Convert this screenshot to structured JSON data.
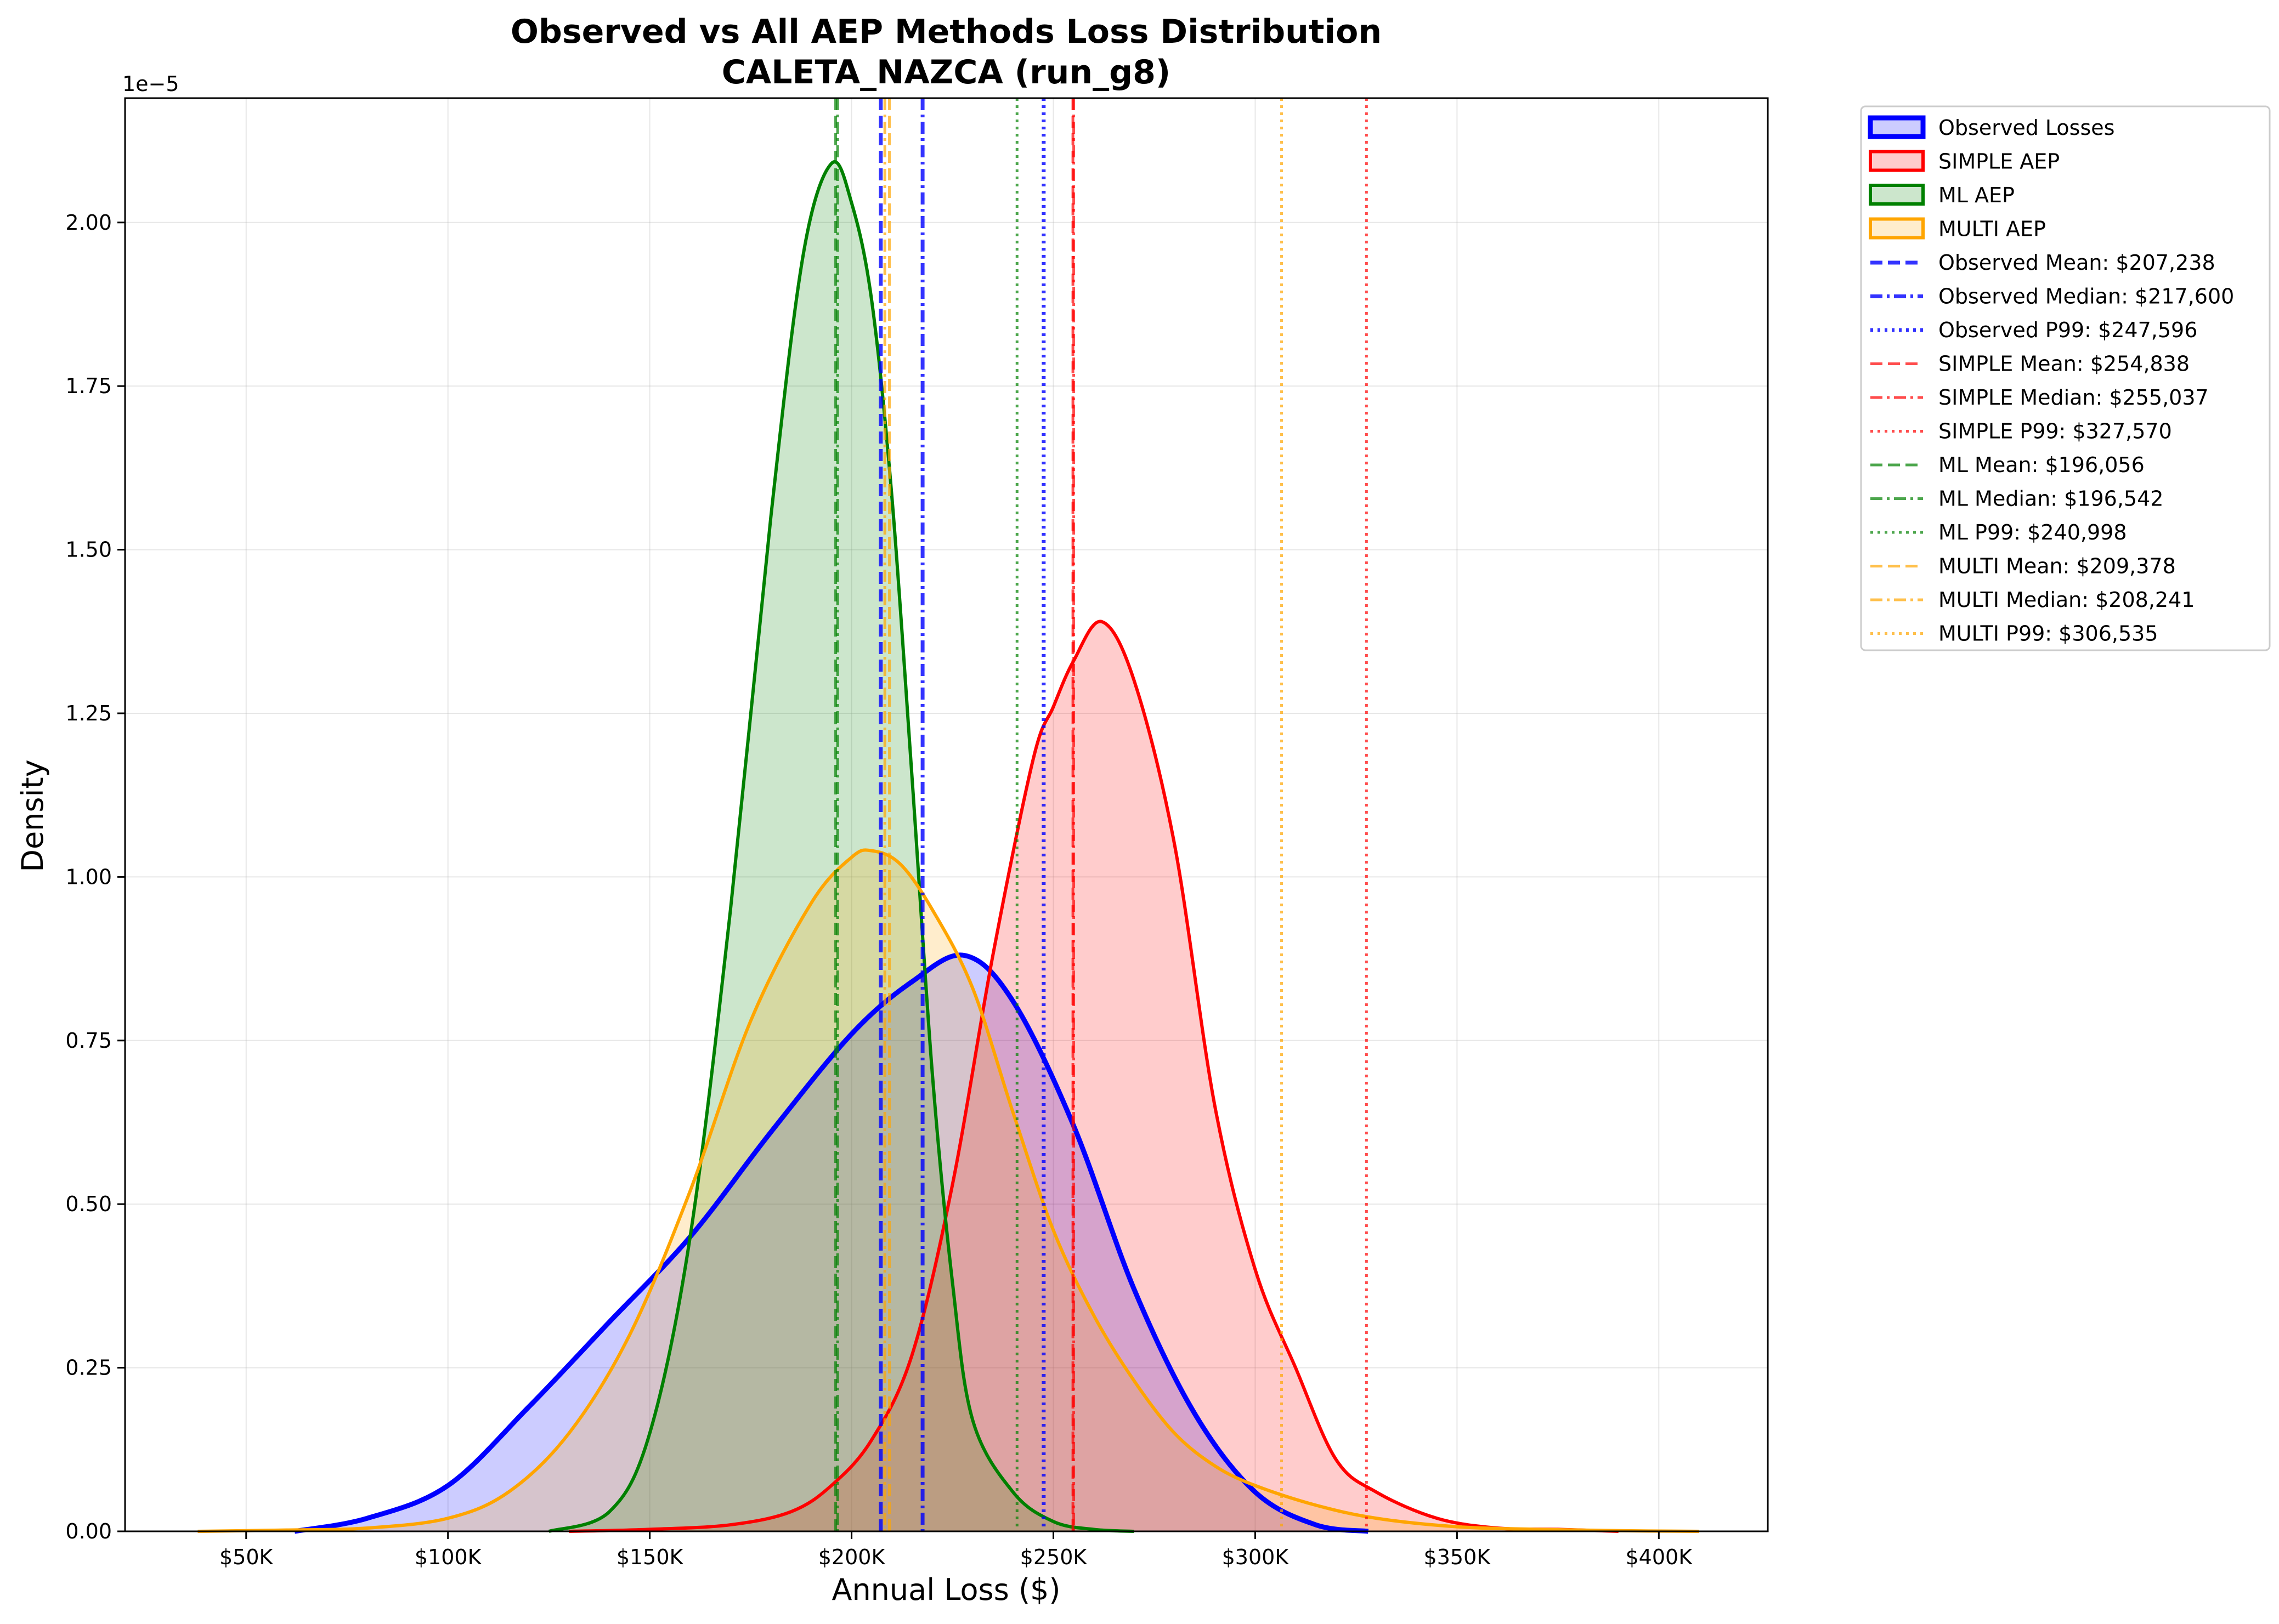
{
  "chart_data": {
    "type": "area",
    "title": "Observed vs All AEP Methods Loss Distribution",
    "subtitle": "CALETA_NAZCA (run_g8)",
    "xlabel": "Annual Loss ($)",
    "ylabel": "Density",
    "y_scale_label": "1e−5",
    "xlim": [
      20000,
      427000
    ],
    "ylim": [
      0,
      2.19
    ],
    "x_ticks": [
      50000,
      100000,
      150000,
      200000,
      250000,
      300000,
      350000,
      400000
    ],
    "x_tick_labels": [
      "$50K",
      "$100K",
      "$150K",
      "$200K",
      "$250K",
      "$300K",
      "$350K",
      "$400K"
    ],
    "y_ticks": [
      0,
      0.25,
      0.5,
      0.75,
      1.0,
      1.25,
      1.5,
      1.75,
      2.0
    ],
    "y_tick_labels": [
      "0.00",
      "0.25",
      "0.50",
      "0.75",
      "1.00",
      "1.25",
      "1.50",
      "1.75",
      "2.00"
    ],
    "grid": true,
    "legend_position": "outside-right-top",
    "series": [
      {
        "name": "Observed Losses",
        "color": "#0000ff",
        "x": [
          62000,
          80000,
          100000,
          120000,
          140000,
          160000,
          180000,
          200000,
          215000,
          228000,
          240000,
          255000,
          270000,
          285000,
          300000,
          315000,
          328000
        ],
        "y": [
          0.0,
          0.02,
          0.07,
          0.19,
          0.32,
          0.45,
          0.61,
          0.76,
          0.84,
          0.88,
          0.81,
          0.62,
          0.37,
          0.18,
          0.06,
          0.01,
          0.0
        ]
      },
      {
        "name": "SIMPLE AEP",
        "color": "#ff0000",
        "x": [
          130000,
          150000,
          170000,
          185000,
          195000,
          205000,
          215000,
          225000,
          235000,
          245000,
          250000,
          255000,
          262000,
          270000,
          280000,
          290000,
          300000,
          310000,
          320000,
          330000,
          345000,
          360000,
          375000,
          390000
        ],
        "y": [
          0.0,
          0.003,
          0.01,
          0.03,
          0.07,
          0.14,
          0.27,
          0.53,
          0.88,
          1.18,
          1.26,
          1.33,
          1.39,
          1.3,
          1.05,
          0.65,
          0.4,
          0.25,
          0.11,
          0.06,
          0.02,
          0.005,
          0.003,
          0.0
        ]
      },
      {
        "name": "ML AEP",
        "color": "#008000",
        "x": [
          125000,
          140000,
          150000,
          160000,
          170000,
          180000,
          188000,
          195000,
          200000,
          205000,
          210000,
          215000,
          220000,
          225000,
          230000,
          240000,
          250000,
          260000,
          270000
        ],
        "y": [
          0.0,
          0.03,
          0.15,
          0.45,
          0.95,
          1.55,
          1.95,
          2.09,
          2.03,
          1.88,
          1.58,
          1.15,
          0.7,
          0.38,
          0.17,
          0.06,
          0.015,
          0.003,
          0.0
        ]
      },
      {
        "name": "MULTI AEP",
        "color": "#ffa500",
        "x": [
          38000,
          60000,
          80000,
          100000,
          115000,
          130000,
          145000,
          160000,
          175000,
          190000,
          200000,
          205000,
          212000,
          220000,
          230000,
          240000,
          250000,
          260000,
          270000,
          280000,
          290000,
          300000,
          315000,
          330000,
          350000,
          370000,
          390000,
          410000
        ],
        "y": [
          0.0,
          0.002,
          0.005,
          0.02,
          0.06,
          0.15,
          0.3,
          0.52,
          0.78,
          0.96,
          1.03,
          1.04,
          1.02,
          0.95,
          0.83,
          0.64,
          0.46,
          0.33,
          0.23,
          0.15,
          0.1,
          0.07,
          0.04,
          0.02,
          0.007,
          0.003,
          0.001,
          0.0
        ]
      }
    ],
    "reference_lines": [
      {
        "label": "Observed Mean: $207,238",
        "x": 207238,
        "color": "#0000ff",
        "style": "dashed"
      },
      {
        "label": "Observed Median: $217,600",
        "x": 217600,
        "color": "#0000ff",
        "style": "dashdot"
      },
      {
        "label": "Observed P99: $247,596",
        "x": 247596,
        "color": "#0000ff",
        "style": "dotted"
      },
      {
        "label": "SIMPLE Mean: $254,838",
        "x": 254838,
        "color": "#ff0000",
        "style": "dashed"
      },
      {
        "label": "SIMPLE Median: $255,037",
        "x": 255037,
        "color": "#ff0000",
        "style": "dashdot"
      },
      {
        "label": "SIMPLE P99: $327,570",
        "x": 327570,
        "color": "#ff0000",
        "style": "dotted"
      },
      {
        "label": "ML Mean: $196,056",
        "x": 196056,
        "color": "#008000",
        "style": "dashed"
      },
      {
        "label": "ML Median: $196,542",
        "x": 196542,
        "color": "#008000",
        "style": "dashdot"
      },
      {
        "label": "ML P99: $240,998",
        "x": 240998,
        "color": "#008000",
        "style": "dotted"
      },
      {
        "label": "MULTI Mean: $209,378",
        "x": 209378,
        "color": "#ffa500",
        "style": "dashed"
      },
      {
        "label": "MULTI Median: $208,241",
        "x": 208241,
        "color": "#ffa500",
        "style": "dashdot"
      },
      {
        "label": "MULTI P99: $306,535",
        "x": 306535,
        "color": "#ffa500",
        "style": "dotted"
      }
    ]
  }
}
